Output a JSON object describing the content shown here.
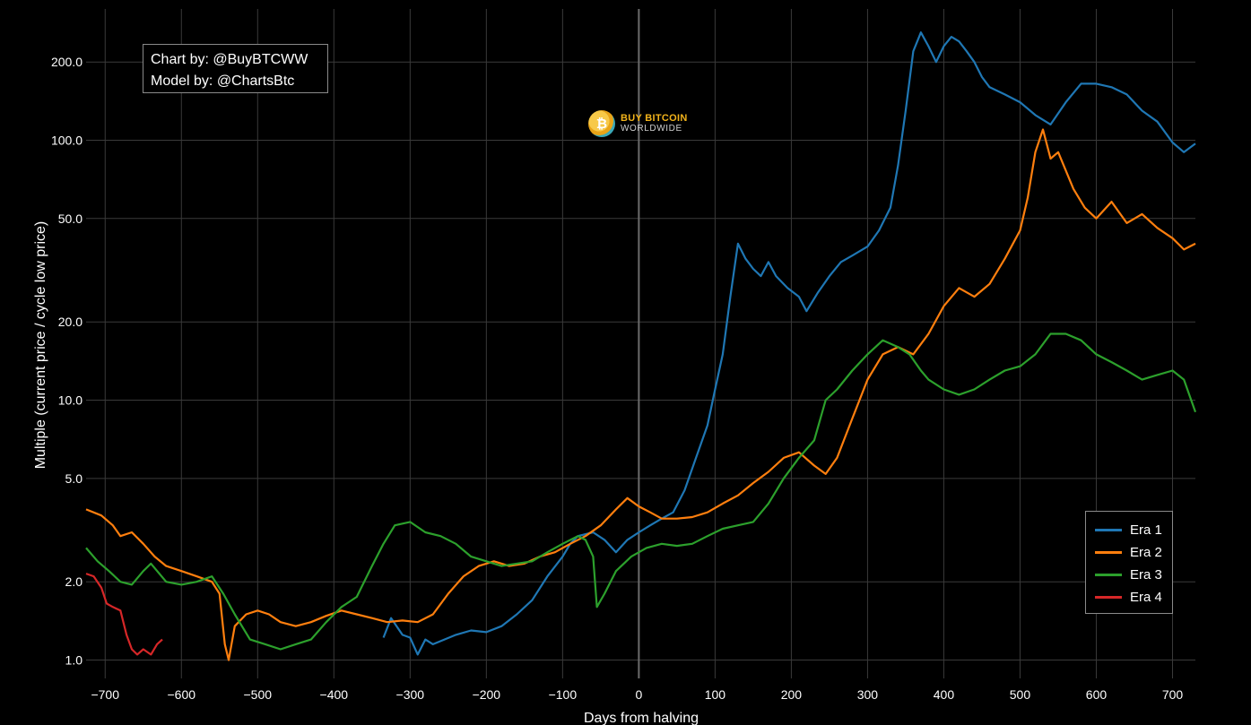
{
  "chart_data": {
    "type": "line",
    "title": "",
    "xlabel": "Days from halving",
    "ylabel": "Multiple (current price / cycle low price)",
    "xlim": [
      -725,
      730
    ],
    "ylim": [
      0.85,
      320
    ],
    "yscale": "log",
    "x_ticks": [
      -700,
      -600,
      -500,
      -400,
      -300,
      -200,
      -100,
      0,
      100,
      200,
      300,
      400,
      500,
      600,
      700
    ],
    "x_tick_labels": [
      "−700",
      "−600",
      "−500",
      "−400",
      "−300",
      "−200",
      "−100",
      "0",
      "100",
      "200",
      "300",
      "400",
      "500",
      "600",
      "700"
    ],
    "y_ticks": [
      1,
      2,
      5,
      10,
      20,
      50,
      100,
      200
    ],
    "y_tick_labels": [
      "1.0",
      "2.0",
      "5.0",
      "10.0",
      "20.0",
      "50.0",
      "100.0",
      "200.0"
    ],
    "grid": true,
    "vline_at": 0,
    "legend": "bottom-right",
    "series": [
      {
        "name": "Era 1",
        "color": "#1f77b4",
        "points": [
          [
            -335,
            1.22
          ],
          [
            -325,
            1.45
          ],
          [
            -310,
            1.25
          ],
          [
            -300,
            1.22
          ],
          [
            -290,
            1.05
          ],
          [
            -280,
            1.2
          ],
          [
            -270,
            1.15
          ],
          [
            -255,
            1.2
          ],
          [
            -240,
            1.25
          ],
          [
            -220,
            1.3
          ],
          [
            -200,
            1.28
          ],
          [
            -180,
            1.35
          ],
          [
            -160,
            1.5
          ],
          [
            -140,
            1.7
          ],
          [
            -120,
            2.1
          ],
          [
            -100,
            2.5
          ],
          [
            -90,
            2.8
          ],
          [
            -80,
            3.0
          ],
          [
            -60,
            3.1
          ],
          [
            -45,
            2.9
          ],
          [
            -30,
            2.6
          ],
          [
            -15,
            2.9
          ],
          [
            0,
            3.1
          ],
          [
            15,
            3.3
          ],
          [
            30,
            3.5
          ],
          [
            45,
            3.7
          ],
          [
            60,
            4.5
          ],
          [
            75,
            6.0
          ],
          [
            90,
            8.0
          ],
          [
            100,
            11
          ],
          [
            110,
            15
          ],
          [
            120,
            25
          ],
          [
            130,
            40
          ],
          [
            140,
            35
          ],
          [
            150,
            32
          ],
          [
            160,
            30
          ],
          [
            170,
            34
          ],
          [
            180,
            30
          ],
          [
            195,
            27
          ],
          [
            210,
            25
          ],
          [
            220,
            22
          ],
          [
            235,
            26
          ],
          [
            250,
            30
          ],
          [
            265,
            34
          ],
          [
            280,
            36
          ],
          [
            300,
            39
          ],
          [
            315,
            45
          ],
          [
            330,
            55
          ],
          [
            340,
            80
          ],
          [
            350,
            130
          ],
          [
            360,
            220
          ],
          [
            370,
            260
          ],
          [
            380,
            230
          ],
          [
            390,
            200
          ],
          [
            400,
            230
          ],
          [
            410,
            250
          ],
          [
            420,
            240
          ],
          [
            430,
            220
          ],
          [
            440,
            200
          ],
          [
            450,
            175
          ],
          [
            460,
            160
          ],
          [
            480,
            150
          ],
          [
            500,
            140
          ],
          [
            520,
            125
          ],
          [
            540,
            115
          ],
          [
            560,
            140
          ],
          [
            580,
            165
          ],
          [
            600,
            165
          ],
          [
            620,
            160
          ],
          [
            640,
            150
          ],
          [
            660,
            130
          ],
          [
            680,
            118
          ],
          [
            700,
            98
          ],
          [
            715,
            90
          ],
          [
            730,
            97
          ]
        ]
      },
      {
        "name": "Era 2",
        "color": "#ff7f0e",
        "points": [
          [
            -725,
            3.8
          ],
          [
            -705,
            3.6
          ],
          [
            -690,
            3.3
          ],
          [
            -680,
            3.0
          ],
          [
            -665,
            3.1
          ],
          [
            -650,
            2.8
          ],
          [
            -635,
            2.5
          ],
          [
            -620,
            2.3
          ],
          [
            -600,
            2.2
          ],
          [
            -580,
            2.1
          ],
          [
            -560,
            2.0
          ],
          [
            -550,
            1.8
          ],
          [
            -543,
            1.15
          ],
          [
            -538,
            1.0
          ],
          [
            -530,
            1.35
          ],
          [
            -515,
            1.5
          ],
          [
            -500,
            1.55
          ],
          [
            -485,
            1.5
          ],
          [
            -470,
            1.4
          ],
          [
            -450,
            1.35
          ],
          [
            -430,
            1.4
          ],
          [
            -410,
            1.48
          ],
          [
            -390,
            1.55
          ],
          [
            -370,
            1.5
          ],
          [
            -350,
            1.45
          ],
          [
            -330,
            1.4
          ],
          [
            -310,
            1.42
          ],
          [
            -290,
            1.4
          ],
          [
            -270,
            1.5
          ],
          [
            -250,
            1.8
          ],
          [
            -230,
            2.1
          ],
          [
            -210,
            2.3
          ],
          [
            -190,
            2.4
          ],
          [
            -170,
            2.3
          ],
          [
            -150,
            2.35
          ],
          [
            -130,
            2.5
          ],
          [
            -110,
            2.6
          ],
          [
            -90,
            2.8
          ],
          [
            -70,
            3.0
          ],
          [
            -50,
            3.3
          ],
          [
            -30,
            3.8
          ],
          [
            -15,
            4.2
          ],
          [
            0,
            3.9
          ],
          [
            15,
            3.7
          ],
          [
            30,
            3.5
          ],
          [
            50,
            3.5
          ],
          [
            70,
            3.55
          ],
          [
            90,
            3.7
          ],
          [
            110,
            4.0
          ],
          [
            130,
            4.3
          ],
          [
            150,
            4.8
          ],
          [
            170,
            5.3
          ],
          [
            190,
            6.0
          ],
          [
            210,
            6.3
          ],
          [
            230,
            5.6
          ],
          [
            245,
            5.2
          ],
          [
            260,
            6.0
          ],
          [
            280,
            8.5
          ],
          [
            300,
            12
          ],
          [
            320,
            15
          ],
          [
            340,
            16
          ],
          [
            360,
            15
          ],
          [
            380,
            18
          ],
          [
            400,
            23
          ],
          [
            420,
            27
          ],
          [
            440,
            25
          ],
          [
            460,
            28
          ],
          [
            480,
            35
          ],
          [
            500,
            45
          ],
          [
            510,
            60
          ],
          [
            520,
            90
          ],
          [
            530,
            110
          ],
          [
            540,
            85
          ],
          [
            550,
            90
          ],
          [
            570,
            65
          ],
          [
            585,
            55
          ],
          [
            600,
            50
          ],
          [
            620,
            58
          ],
          [
            640,
            48
          ],
          [
            660,
            52
          ],
          [
            680,
            46
          ],
          [
            700,
            42
          ],
          [
            715,
            38
          ],
          [
            730,
            40
          ]
        ]
      },
      {
        "name": "Era 3",
        "color": "#2ca02c",
        "points": [
          [
            -725,
            2.7
          ],
          [
            -710,
            2.4
          ],
          [
            -695,
            2.2
          ],
          [
            -680,
            2.0
          ],
          [
            -665,
            1.95
          ],
          [
            -650,
            2.2
          ],
          [
            -640,
            2.35
          ],
          [
            -620,
            2.0
          ],
          [
            -600,
            1.95
          ],
          [
            -580,
            2.0
          ],
          [
            -560,
            2.1
          ],
          [
            -545,
            1.8
          ],
          [
            -530,
            1.5
          ],
          [
            -510,
            1.2
          ],
          [
            -490,
            1.15
          ],
          [
            -470,
            1.1
          ],
          [
            -450,
            1.15
          ],
          [
            -430,
            1.2
          ],
          [
            -410,
            1.4
          ],
          [
            -390,
            1.6
          ],
          [
            -370,
            1.75
          ],
          [
            -350,
            2.3
          ],
          [
            -335,
            2.8
          ],
          [
            -320,
            3.3
          ],
          [
            -300,
            3.4
          ],
          [
            -280,
            3.1
          ],
          [
            -260,
            3.0
          ],
          [
            -240,
            2.8
          ],
          [
            -220,
            2.5
          ],
          [
            -200,
            2.4
          ],
          [
            -180,
            2.3
          ],
          [
            -160,
            2.35
          ],
          [
            -140,
            2.4
          ],
          [
            -120,
            2.6
          ],
          [
            -100,
            2.8
          ],
          [
            -80,
            3.0
          ],
          [
            -70,
            2.9
          ],
          [
            -60,
            2.5
          ],
          [
            -55,
            1.6
          ],
          [
            -45,
            1.8
          ],
          [
            -30,
            2.2
          ],
          [
            -10,
            2.5
          ],
          [
            10,
            2.7
          ],
          [
            30,
            2.8
          ],
          [
            50,
            2.75
          ],
          [
            70,
            2.8
          ],
          [
            90,
            3.0
          ],
          [
            110,
            3.2
          ],
          [
            130,
            3.3
          ],
          [
            150,
            3.4
          ],
          [
            170,
            4.0
          ],
          [
            190,
            5.0
          ],
          [
            210,
            6.0
          ],
          [
            230,
            7.0
          ],
          [
            245,
            10
          ],
          [
            260,
            11
          ],
          [
            280,
            13
          ],
          [
            300,
            15
          ],
          [
            320,
            17
          ],
          [
            340,
            16
          ],
          [
            355,
            15
          ],
          [
            370,
            13
          ],
          [
            380,
            12
          ],
          [
            400,
            11
          ],
          [
            420,
            10.5
          ],
          [
            440,
            11
          ],
          [
            460,
            12
          ],
          [
            480,
            13
          ],
          [
            500,
            13.5
          ],
          [
            520,
            15
          ],
          [
            540,
            18
          ],
          [
            560,
            18
          ],
          [
            580,
            17
          ],
          [
            600,
            15
          ],
          [
            620,
            14
          ],
          [
            640,
            13
          ],
          [
            660,
            12
          ],
          [
            680,
            12.5
          ],
          [
            700,
            13
          ],
          [
            715,
            12
          ],
          [
            730,
            9
          ]
        ]
      },
      {
        "name": "Era 4",
        "color": "#d62728",
        "points": [
          [
            -725,
            2.15
          ],
          [
            -715,
            2.1
          ],
          [
            -705,
            1.9
          ],
          [
            -698,
            1.65
          ],
          [
            -690,
            1.6
          ],
          [
            -680,
            1.55
          ],
          [
            -672,
            1.25
          ],
          [
            -665,
            1.1
          ],
          [
            -658,
            1.05
          ],
          [
            -650,
            1.1
          ],
          [
            -640,
            1.05
          ],
          [
            -632,
            1.15
          ],
          [
            -625,
            1.2
          ]
        ]
      }
    ]
  },
  "annotations": {
    "credit_line1": "Chart by: @BuyBTCWW",
    "credit_line2": "Model by: @ChartsBtc",
    "logo_line1": "BUY BITCOIN",
    "logo_line2": "WORLDWIDE",
    "logo_glyph": "₿"
  },
  "colors": {
    "background": "#000000",
    "grid": "#3a3a3a",
    "halving_line": "#6b6b6b",
    "text": "#ffffff"
  }
}
